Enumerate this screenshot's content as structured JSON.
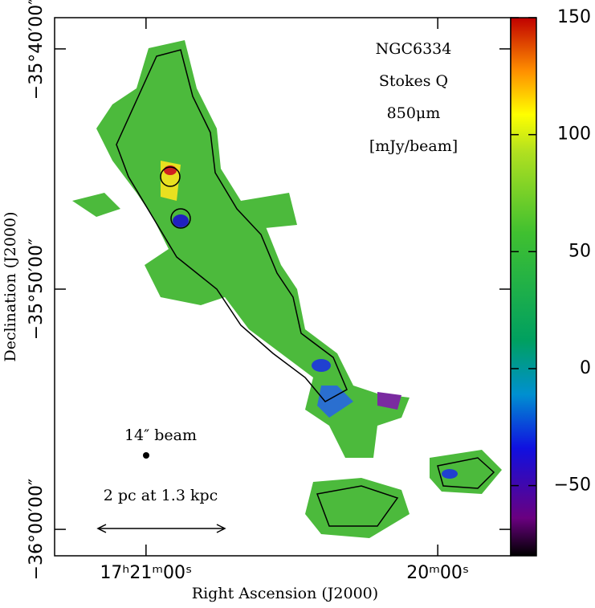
{
  "chart_data": {
    "type": "image",
    "annotations": [
      "NGC6334",
      "Stokes Q",
      "850μm",
      "[mJy/beam]"
    ],
    "beam_label": "14″ beam",
    "scale_label": "2 pc at 1.3 kpc",
    "xlabel": "Right Ascension (J2000)",
    "ylabel": "Declination (J2000)",
    "xlim": [
      62478.8,
      62385
    ],
    "xticks": [
      {
        "value": 62460,
        "label": "17ʰ21ᵐ00ˢ"
      },
      {
        "value": 62400,
        "label": "20ᵐ00ˢ"
      }
    ],
    "ylim": [
      -2161.1,
      -2138.7
    ],
    "yticks": [
      {
        "value": -2160,
        "label": "−36°00′00″"
      },
      {
        "value": -2150,
        "label": "−35°50′00″"
      },
      {
        "value": -2140,
        "label": "−35°40′00″"
      }
    ],
    "clim": [
      -80,
      150
    ],
    "cticks": [
      {
        "value": -50,
        "label": "−50"
      },
      0,
      50,
      100,
      150
    ]
  }
}
